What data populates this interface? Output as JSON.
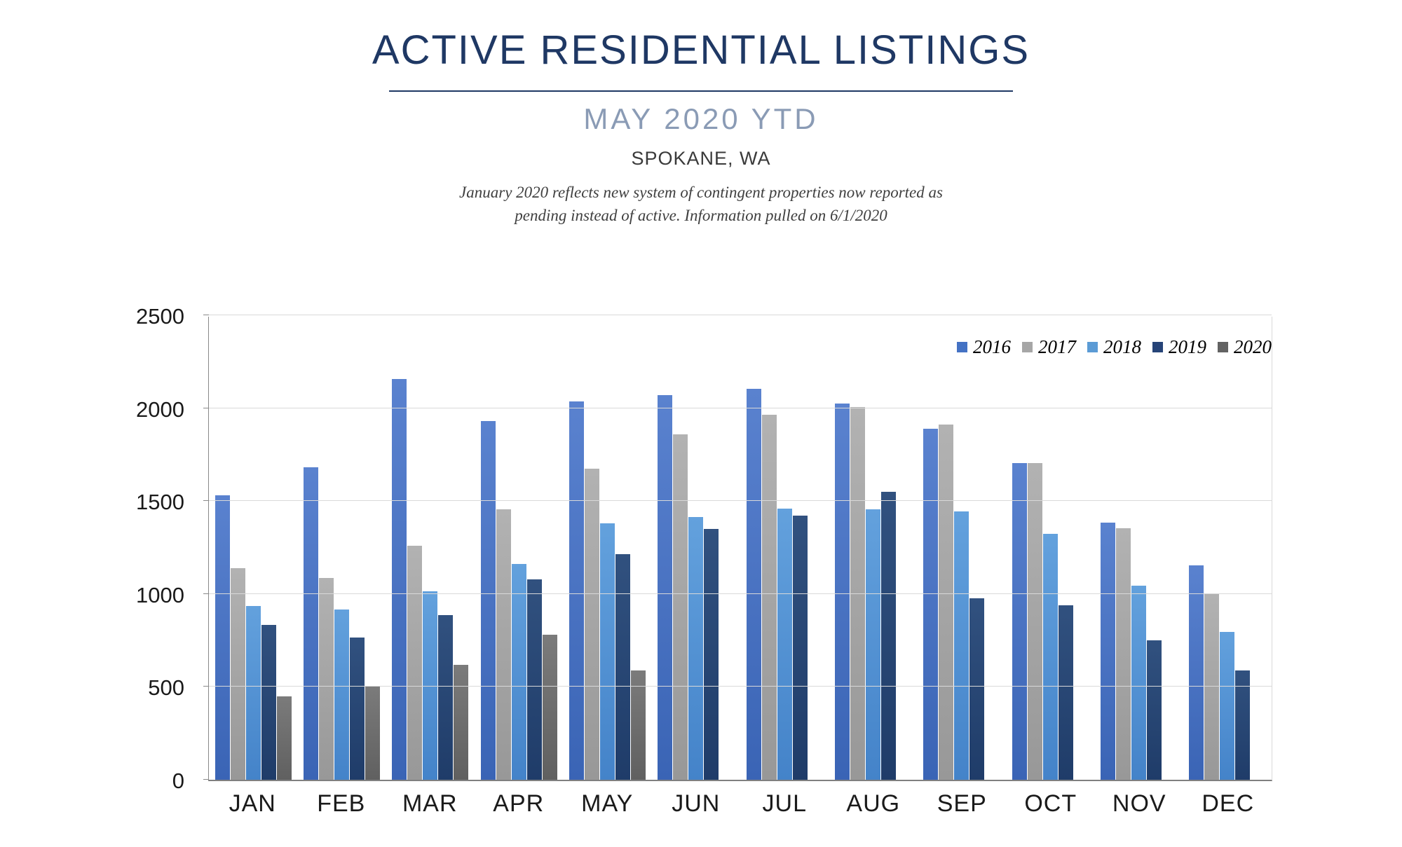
{
  "header": {
    "title": "ACTIVE RESIDENTIAL LISTINGS",
    "subtitle": "MAY 2020 YTD",
    "location": "SPOKANE, WA",
    "note_line1": "January 2020 reflects new system of contingent properties now reported as",
    "note_line2": "pending instead of active.  Information pulled on 6/1/2020"
  },
  "colors": {
    "title_navy": "#1F3864",
    "subtitle_blue_gray": "#8A9BB5",
    "gridline": "#D9D9D9",
    "axis": "#808080",
    "series_2016": "#4472C4",
    "series_2017": "#A6A6A6",
    "series_2018": "#5B9BD5",
    "series_2019": "#264478",
    "series_2020": "#636363"
  },
  "chart_data": {
    "type": "bar",
    "title": "ACTIVE RESIDENTIAL LISTINGS",
    "subtitle": "MAY 2020 YTD",
    "location": "SPOKANE, WA",
    "categories": [
      "JAN",
      "FEB",
      "MAR",
      "APR",
      "MAY",
      "JUN",
      "JUL",
      "AUG",
      "SEP",
      "OCT",
      "NOV",
      "DEC"
    ],
    "series": [
      {
        "name": "2016",
        "color": "#4472C4",
        "values": [
          1530,
          1680,
          2155,
          1930,
          2035,
          2070,
          2105,
          2025,
          1890,
          1705,
          1385,
          1155
        ]
      },
      {
        "name": "2017",
        "color": "#A6A6A6",
        "values": [
          1140,
          1085,
          1260,
          1455,
          1675,
          1860,
          1965,
          2005,
          1910,
          1705,
          1355,
          1000
        ]
      },
      {
        "name": "2018",
        "color": "#5B9BD5",
        "values": [
          935,
          915,
          1015,
          1160,
          1380,
          1415,
          1460,
          1455,
          1445,
          1325,
          1045,
          795
        ]
      },
      {
        "name": "2019",
        "color": "#264478",
        "values": [
          835,
          765,
          885,
          1080,
          1215,
          1350,
          1420,
          1550,
          975,
          940,
          750,
          590
        ]
      },
      {
        "name": "2020",
        "color": "#636363",
        "values": [
          450,
          500,
          620,
          780,
          590,
          0,
          0,
          0,
          0,
          0,
          0,
          0
        ]
      }
    ],
    "ylim": [
      0,
      2500
    ],
    "yticks": [
      0,
      500,
      1000,
      1500,
      2000,
      2500
    ],
    "grid": "horizontal-major",
    "legend_position": "top-right-inside"
  }
}
